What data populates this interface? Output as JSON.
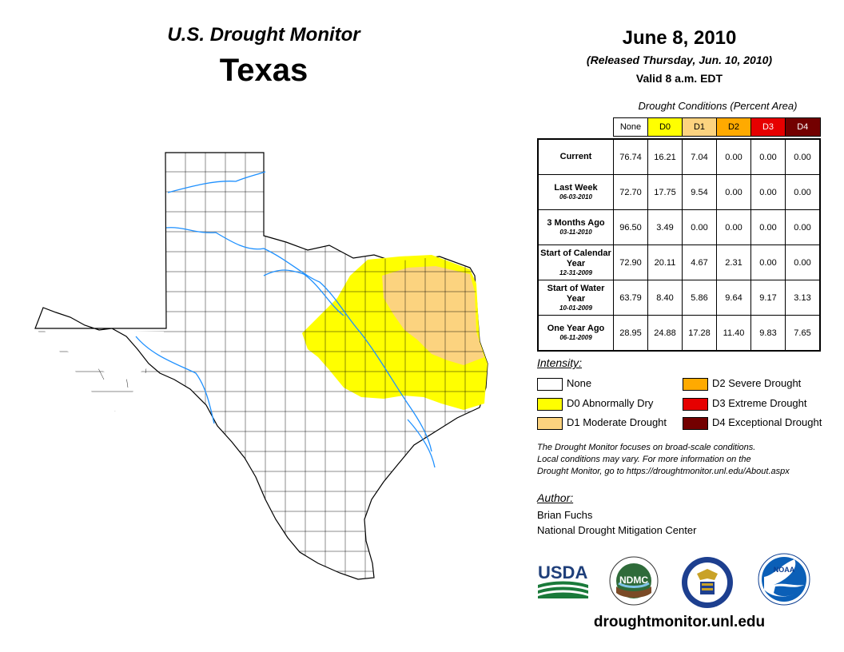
{
  "header": {
    "subtitle": "U.S. Drought Monitor",
    "state": "Texas",
    "date": "June 8, 2010",
    "released": "(Released Thursday, Jun. 10, 2010)",
    "valid": "Valid 8 a.m. EDT"
  },
  "table": {
    "caption": "Drought Conditions (Percent Area)",
    "columns": [
      {
        "label": "None",
        "color": "#ffffff",
        "text_color": "#000000"
      },
      {
        "label": "D0",
        "color": "#ffff00",
        "text_color": "#000000"
      },
      {
        "label": "D1",
        "color": "#fcd37f",
        "text_color": "#000000"
      },
      {
        "label": "D2",
        "color": "#ffaa00",
        "text_color": "#000000"
      },
      {
        "label": "D3",
        "color": "#e60000",
        "text_color": "#ffffff"
      },
      {
        "label": "D4",
        "color": "#730000",
        "text_color": "#ffffff"
      }
    ],
    "rows": [
      {
        "label": "Current",
        "date": "",
        "values": [
          "76.74",
          "16.21",
          "7.04",
          "0.00",
          "0.00",
          "0.00"
        ]
      },
      {
        "label": "Last Week",
        "date": "06-03-2010",
        "values": [
          "72.70",
          "17.75",
          "9.54",
          "0.00",
          "0.00",
          "0.00"
        ]
      },
      {
        "label": "3 Months Ago",
        "date": "03-11-2010",
        "values": [
          "96.50",
          "3.49",
          "0.00",
          "0.00",
          "0.00",
          "0.00"
        ]
      },
      {
        "label": "Start of Calendar Year",
        "date": "12-31-2009",
        "values": [
          "72.90",
          "20.11",
          "4.67",
          "2.31",
          "0.00",
          "0.00"
        ]
      },
      {
        "label": "Start of Water Year",
        "date": "10-01-2009",
        "values": [
          "63.79",
          "8.40",
          "5.86",
          "9.64",
          "9.17",
          "3.13"
        ]
      },
      {
        "label": "One Year Ago",
        "date": "06-11-2009",
        "values": [
          "28.95",
          "24.88",
          "17.28",
          "11.40",
          "9.83",
          "7.65"
        ]
      }
    ]
  },
  "legend": {
    "title": "Intensity:",
    "items": [
      {
        "label": "None",
        "color": "#ffffff"
      },
      {
        "label": "D0 Abnormally Dry",
        "color": "#ffff00"
      },
      {
        "label": "D1 Moderate Drought",
        "color": "#fcd37f"
      },
      {
        "label": "D2 Severe Drought",
        "color": "#ffaa00"
      },
      {
        "label": "D3 Extreme Drought",
        "color": "#e60000"
      },
      {
        "label": "D4 Exceptional Drought",
        "color": "#730000"
      }
    ]
  },
  "disclaimer": {
    "line1": "The Drought Monitor focuses on broad-scale conditions.",
    "line2": "Local conditions may vary. For more information on the",
    "line3": "Drought Monitor, go to https://droughtmonitor.unl.edu/About.aspx"
  },
  "author": {
    "title": "Author:",
    "name": "Brian Fuchs",
    "org": "National Drought Mitigation Center"
  },
  "logos": {
    "usda": "USDA",
    "ndmc": "NDMC",
    "noaa": "NOAA"
  },
  "footer": {
    "url": "droughtmonitor.unl.edu"
  },
  "map": {
    "state": "Texas",
    "colors": {
      "none": "#ffffff",
      "d0": "#ffff00",
      "d1": "#fcd37f",
      "river": "#1e90ff",
      "border": "#000000"
    }
  }
}
